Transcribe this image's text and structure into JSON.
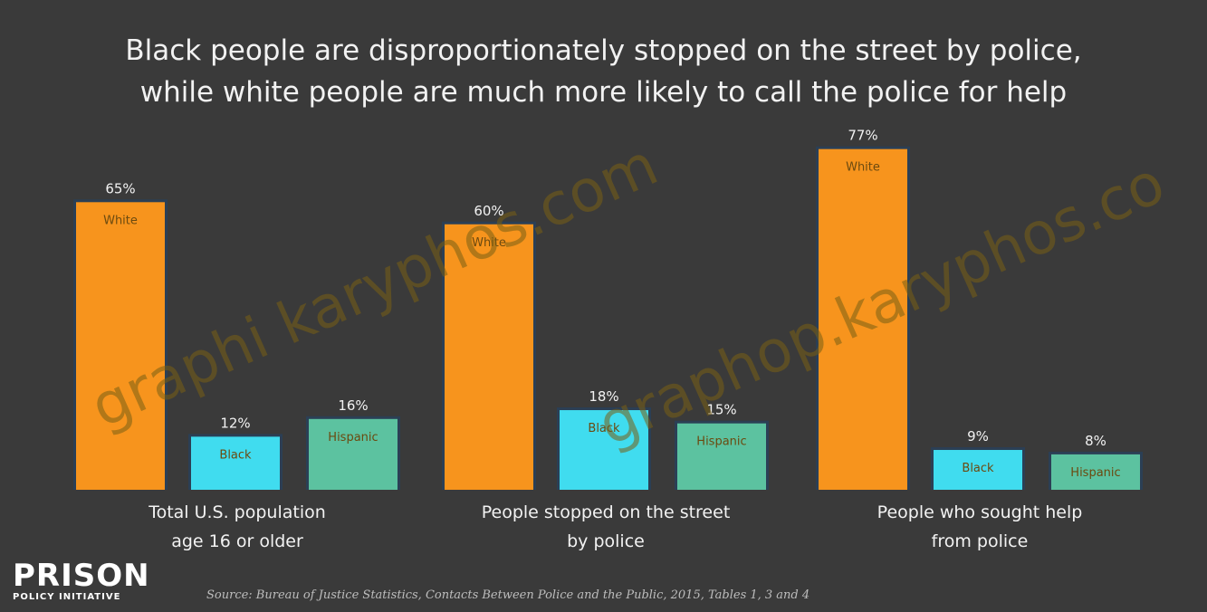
{
  "chart_data": {
    "type": "bar",
    "title": "Black people are disproportionately stopped on the street by police, while white people are much more likely to call the police for help",
    "title_lines": [
      "Black people are disproportionately stopped on the street by police,",
      "while white people are much more likely to call the police for help"
    ],
    "categories": [
      "Total U.S. population age 16 or older",
      "People stopped on the street by police",
      "People who sought help from police"
    ],
    "category_lines": [
      [
        "Total U.S. population",
        "age 16 or older"
      ],
      [
        "People stopped on the street",
        "by police"
      ],
      [
        "People who sought help",
        "from police"
      ]
    ],
    "series": [
      {
        "name": "White",
        "values": [
          65,
          60,
          77
        ],
        "labels": [
          "65%",
          "60%",
          "77%"
        ],
        "color": "#f7941d"
      },
      {
        "name": "Black",
        "values": [
          12,
          18,
          9
        ],
        "labels": [
          "12%",
          "18%",
          "9%"
        ],
        "color": "#40dcef"
      },
      {
        "name": "Hispanic",
        "values": [
          16,
          15,
          8
        ],
        "labels": [
          "16%",
          "15%",
          "8%"
        ],
        "color": "#5cc2a0"
      }
    ],
    "ylim": [
      0,
      80
    ],
    "grid": false,
    "xlabel": "",
    "ylabel": ""
  },
  "branding": {
    "logo_name": "PRISON",
    "logo_sub": "POLICY INITIATIVE"
  },
  "source": "Source: Bureau of Justice Statistics, Contacts Between Police and the Public, 2015, Tables 1, 3 and 4",
  "watermarks": [
    "graphi karyphos.com",
    "graphop.karyphos.co"
  ],
  "colors": {
    "background": "#3a3a3a",
    "text": "#f2f2f2",
    "bar_border": "#2b3f55"
  }
}
